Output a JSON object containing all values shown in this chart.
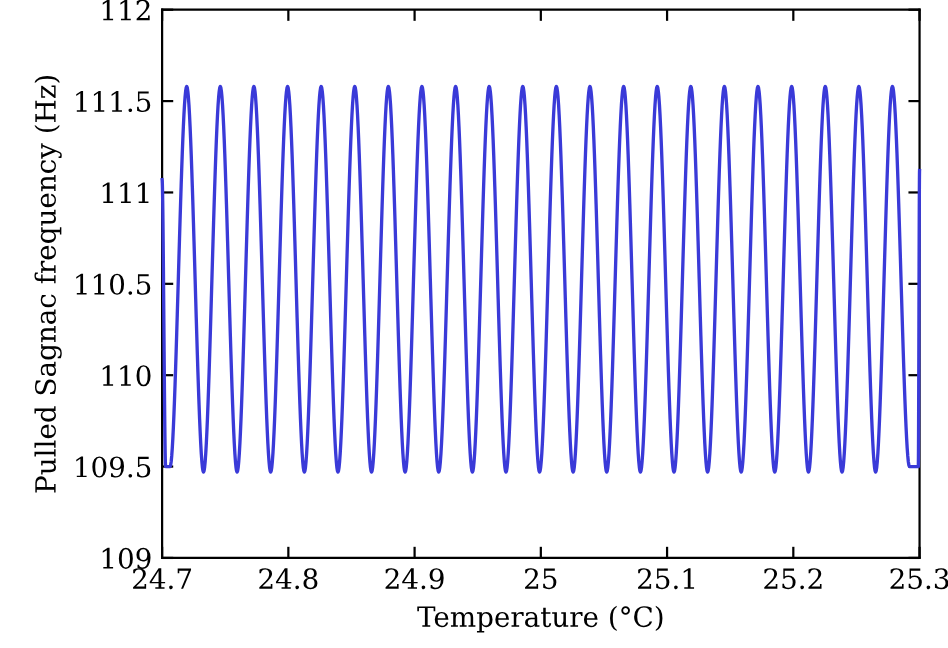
{
  "chart_data": {
    "type": "line",
    "xlabel": "Temperature (°C)",
    "ylabel": "Pulled Sagnac frequency (Hz)",
    "xlim": [
      24.7,
      25.3
    ],
    "xticks": [
      24.7,
      24.8,
      24.9,
      25,
      25.1,
      25.2,
      25.3
    ],
    "ylim": [
      109,
      112
    ],
    "yticks": [
      109,
      109.5,
      110,
      110.5,
      111,
      111.5,
      112
    ],
    "grid": false,
    "legend": false,
    "marker": "none",
    "line_style": "solid",
    "series": [
      {
        "color": "#3a3ad8",
        "x": [
          24.7,
          24.7028,
          24.7063,
          24.7195,
          24.7328,
          24.7461,
          24.7594,
          24.7727,
          24.786,
          24.7994,
          24.8127,
          24.826,
          24.8393,
          24.8526,
          24.8659,
          24.8792,
          24.8925,
          24.9058,
          24.9191,
          24.9325,
          24.9458,
          24.9591,
          24.9724,
          24.9857,
          24.999,
          25.0123,
          25.0256,
          25.0389,
          25.0522,
          25.0656,
          25.0789,
          25.0922,
          25.1055,
          25.1188,
          25.1321,
          25.1454,
          25.1587,
          25.172,
          25.1853,
          25.1987,
          25.212,
          25.2253,
          25.2386,
          25.2519,
          25.2652,
          25.2785,
          25.292,
          25.299,
          25.3
        ],
        "values": [
          111.07,
          109.5,
          109.5,
          111.58,
          109.47,
          111.58,
          109.47,
          111.58,
          109.47,
          111.58,
          109.47,
          111.58,
          109.47,
          111.58,
          109.47,
          111.58,
          109.47,
          111.58,
          109.47,
          111.58,
          109.47,
          111.58,
          109.47,
          111.58,
          109.47,
          111.58,
          109.47,
          111.58,
          109.47,
          111.58,
          109.47,
          111.58,
          109.47,
          111.58,
          109.47,
          111.58,
          109.47,
          111.58,
          109.47,
          111.58,
          109.47,
          111.58,
          109.47,
          111.58,
          109.47,
          111.58,
          109.5,
          109.5,
          111.12
        ]
      }
    ]
  }
}
